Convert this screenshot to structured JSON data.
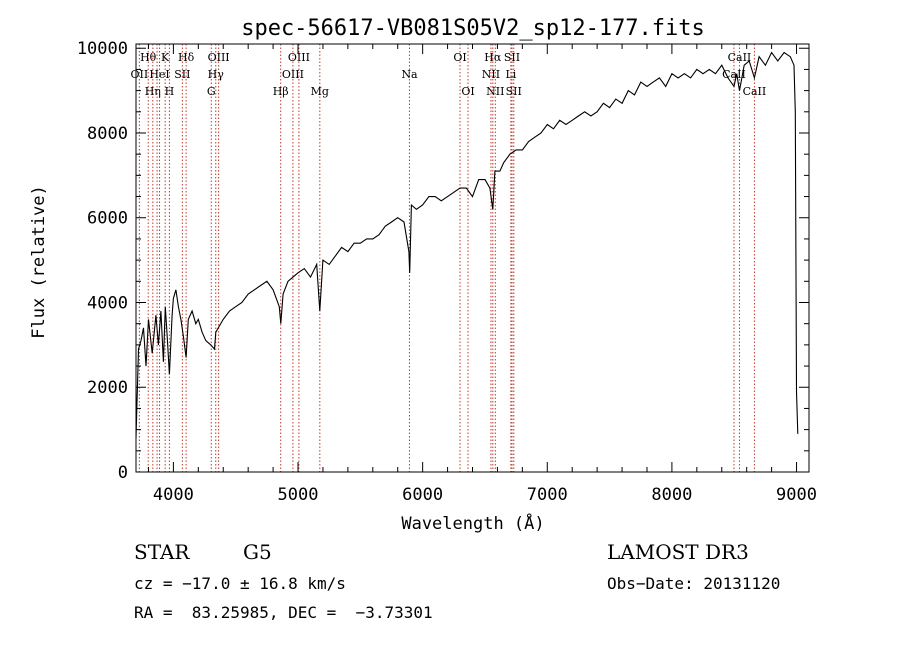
{
  "chart_data": {
    "type": "line",
    "title": "spec-56617-VB081S05V2_sp12-177.fits",
    "xlabel": "Wavelength (Å)",
    "ylabel": "Flux (relative)",
    "xlim": [
      3700,
      9100
    ],
    "ylim": [
      0,
      10100
    ],
    "xticks": [
      4000,
      5000,
      6000,
      7000,
      8000,
      9000
    ],
    "yticks": [
      0,
      2000,
      4000,
      6000,
      8000,
      10000
    ],
    "grid": false,
    "series": [
      {
        "x": [
          3700,
          3720,
          3740,
          3760,
          3780,
          3800,
          3830,
          3860,
          3880,
          3900,
          3920,
          3935,
          3950,
          3968,
          3990,
          4000,
          4020,
          4040,
          4060,
          4080,
          4102,
          4120,
          4150,
          4180,
          4200,
          4230,
          4260,
          4300,
          4330,
          4340,
          4360,
          4400,
          4450,
          4500,
          4550,
          4600,
          4650,
          4700,
          4750,
          4800,
          4850,
          4862,
          4880,
          4920,
          4960,
          5000,
          5050,
          5100,
          5150,
          5175,
          5200,
          5250,
          5300,
          5350,
          5400,
          5450,
          5500,
          5550,
          5600,
          5650,
          5700,
          5750,
          5800,
          5850,
          5890,
          5896,
          5910,
          5950,
          6000,
          6050,
          6100,
          6150,
          6200,
          6250,
          6300,
          6350,
          6400,
          6450,
          6500,
          6540,
          6563,
          6580,
          6620,
          6650,
          6700,
          6750,
          6800,
          6850,
          6900,
          6950,
          7000,
          7050,
          7100,
          7150,
          7200,
          7250,
          7300,
          7350,
          7400,
          7450,
          7500,
          7550,
          7600,
          7650,
          7700,
          7750,
          7800,
          7850,
          7900,
          7950,
          8000,
          8050,
          8100,
          8150,
          8200,
          8250,
          8300,
          8350,
          8400,
          8450,
          8498,
          8520,
          8542,
          8580,
          8620,
          8662,
          8700,
          8750,
          8800,
          8850,
          8900,
          8950,
          8980,
          8990,
          9000,
          9010
        ],
        "y": [
          800,
          2900,
          3100,
          3400,
          2500,
          3600,
          2800,
          3700,
          3000,
          3800,
          2600,
          3900,
          3200,
          2300,
          3700,
          4100,
          4300,
          3900,
          3600,
          3200,
          2700,
          3600,
          3800,
          3500,
          3600,
          3300,
          3100,
          3000,
          2900,
          3300,
          3400,
          3600,
          3800,
          3900,
          4000,
          4200,
          4300,
          4400,
          4500,
          4300,
          3900,
          3500,
          4200,
          4500,
          4600,
          4700,
          4800,
          4600,
          4900,
          3800,
          5000,
          4900,
          5100,
          5300,
          5200,
          5400,
          5400,
          5500,
          5500,
          5600,
          5800,
          5900,
          6000,
          5900,
          5200,
          4700,
          6300,
          6200,
          6300,
          6500,
          6500,
          6400,
          6500,
          6600,
          6700,
          6700,
          6500,
          6900,
          6900,
          6700,
          6200,
          7100,
          7100,
          7300,
          7500,
          7600,
          7600,
          7800,
          7900,
          8000,
          8200,
          8100,
          8300,
          8200,
          8300,
          8400,
          8500,
          8400,
          8500,
          8700,
          8600,
          8800,
          8700,
          9000,
          8900,
          9200,
          9100,
          9200,
          9300,
          9100,
          9400,
          9300,
          9400,
          9300,
          9500,
          9400,
          9500,
          9400,
          9600,
          9300,
          9100,
          9400,
          9000,
          9600,
          9700,
          9300,
          9800,
          9600,
          9900,
          9700,
          9900,
          9800,
          9600,
          8500,
          1900,
          900
        ]
      }
    ],
    "lines": [
      {
        "wl": 3727,
        "top": "OII",
        "row": 1
      },
      {
        "wl": 3798,
        "top": "Hθ",
        "row": 0
      },
      {
        "wl": 3835,
        "top": "Hη",
        "row": 2
      },
      {
        "wl": 3869,
        "top": "",
        "row": 1
      },
      {
        "wl": 3889,
        "top": "HeI",
        "row": 1
      },
      {
        "wl": 3934,
        "top": "K",
        "row": 0
      },
      {
        "wl": 3968,
        "top": "H",
        "row": 2
      },
      {
        "wl": 4072,
        "top": "SII",
        "row": 1
      },
      {
        "wl": 4102,
        "top": "Hδ",
        "row": 0
      },
      {
        "wl": 4304,
        "top": "G",
        "row": 2
      },
      {
        "wl": 4340,
        "top": "Hγ",
        "row": 1
      },
      {
        "wl": 4363,
        "top": "OIII",
        "row": 0
      },
      {
        "wl": 4861,
        "top": "Hβ",
        "row": 2
      },
      {
        "wl": 4959,
        "top": "OIII",
        "row": 1
      },
      {
        "wl": 5007,
        "top": "OIII",
        "row": 0
      },
      {
        "wl": 5175,
        "top": "Mg",
        "row": 2
      },
      {
        "wl": 5894,
        "top": "Na",
        "row": 1
      },
      {
        "wl": 6300,
        "top": "OI",
        "row": 0
      },
      {
        "wl": 6364,
        "top": "OI",
        "row": 2
      },
      {
        "wl": 6548,
        "top": "NII",
        "row": 1
      },
      {
        "wl": 6563,
        "top": "Hα",
        "row": 0
      },
      {
        "wl": 6583,
        "top": "NII",
        "row": 2
      },
      {
        "wl": 6708,
        "top": "Li",
        "row": 1
      },
      {
        "wl": 6717,
        "top": "SII",
        "row": 0
      },
      {
        "wl": 6731,
        "top": "SII",
        "row": 2
      },
      {
        "wl": 8498,
        "top": "CaII",
        "row": 1
      },
      {
        "wl": 8542,
        "top": "CaII",
        "row": 0
      },
      {
        "wl": 8662,
        "top": "CaII",
        "row": 2
      }
    ],
    "colors": {
      "spectrum": "#000000",
      "line_markers": "#c0392b",
      "axes": "#000000"
    }
  },
  "info": {
    "object_class": "STAR",
    "subclass": "G5",
    "survey": "LAMOST DR3",
    "cz": "cz = −17.0 ± 16.8 km/s",
    "obs_date": "Obs−Date: 20131120",
    "coords": "RA =  83.25985, DEC =  −3.73301"
  }
}
